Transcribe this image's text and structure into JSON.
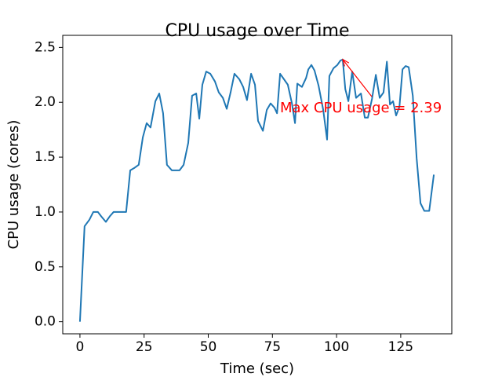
{
  "chart_data": {
    "type": "line",
    "title": "CPU usage over Time",
    "x_label": "Time (sec)",
    "y_label": "CPU usage (cores)",
    "xlim": [
      -6.7,
      144.9
    ],
    "ylim": [
      -0.11,
      2.61
    ],
    "xticks": [
      0,
      25,
      50,
      75,
      100,
      125
    ],
    "yticks": [
      {
        "value": 0,
        "label": "0.0"
      },
      {
        "value": 0.5,
        "label": "0.5"
      },
      {
        "value": 1,
        "label": "1.0"
      },
      {
        "value": 1.5,
        "label": "1.5"
      },
      {
        "value": 2,
        "label": "2.0"
      },
      {
        "value": 2.5,
        "label": "2.5"
      }
    ],
    "grid": false,
    "series": [
      {
        "color": "#1f77b4",
        "x": [
          0,
          1.8,
          3.7,
          5.2,
          7.0,
          8.3,
          10.1,
          11.6,
          13.1,
          14.7,
          16.5,
          18.0,
          19.6,
          21.1,
          22.9,
          24.5,
          26.0,
          27.5,
          29.4,
          30.9,
          32.4,
          33.9,
          35.8,
          37.3,
          38.8,
          40.4,
          42.2,
          43.7,
          45.3,
          46.5,
          47.7,
          49.2,
          50.8,
          52.6,
          54.1,
          55.7,
          57.2,
          58.7,
          60.2,
          62.1,
          63.6,
          65.1,
          66.7,
          68.2,
          69.4,
          71.3,
          72.8,
          74.3,
          75.8,
          76.8,
          78.0,
          79.5,
          81.0,
          82.6,
          83.8,
          84.7,
          86.5,
          88.1,
          89.0,
          90.2,
          91.4,
          93.0,
          94.8,
          96.3,
          97.2,
          98.8,
          100.3,
          101.5,
          102.4,
          103.4,
          104.6,
          106.1,
          107.6,
          109.5,
          111.0,
          112.2,
          113.8,
          115.3,
          116.8,
          118.3,
          119.6,
          120.8,
          122.0,
          123.2,
          124.5,
          125.7,
          126.9,
          128.1,
          129.7,
          131.2,
          132.7,
          134.2,
          136.1,
          137.9
        ],
        "values": [
          0,
          0.87,
          0.93,
          1.0,
          1.0,
          0.96,
          0.91,
          0.96,
          1.0,
          1.0,
          1.0,
          1.0,
          1.38,
          1.4,
          1.43,
          1.68,
          1.81,
          1.77,
          2.01,
          2.08,
          1.9,
          1.43,
          1.38,
          1.38,
          1.38,
          1.43,
          1.63,
          2.06,
          2.08,
          1.85,
          2.16,
          2.28,
          2.26,
          2.19,
          2.09,
          2.04,
          1.94,
          2.09,
          2.26,
          2.21,
          2.14,
          2.02,
          2.26,
          2.16,
          1.83,
          1.74,
          1.93,
          1.99,
          1.95,
          1.9,
          2.26,
          2.21,
          2.16,
          1.99,
          1.81,
          2.17,
          2.14,
          2.22,
          2.3,
          2.34,
          2.29,
          2.15,
          1.93,
          1.66,
          2.24,
          2.31,
          2.34,
          2.38,
          2.39,
          2.12,
          2.01,
          2.28,
          2.04,
          2.08,
          1.86,
          1.86,
          2.03,
          2.25,
          2.04,
          2.09,
          2.37,
          1.98,
          2.01,
          1.88,
          1.96,
          2.3,
          2.33,
          2.32,
          2.06,
          1.49,
          1.08,
          1.01,
          1.01,
          1.34
        ]
      }
    ],
    "annotations": [
      {
        "text": "Max CPU usage = 2.39",
        "x": 102.4,
        "y": 2.39,
        "color": "red"
      }
    ]
  }
}
